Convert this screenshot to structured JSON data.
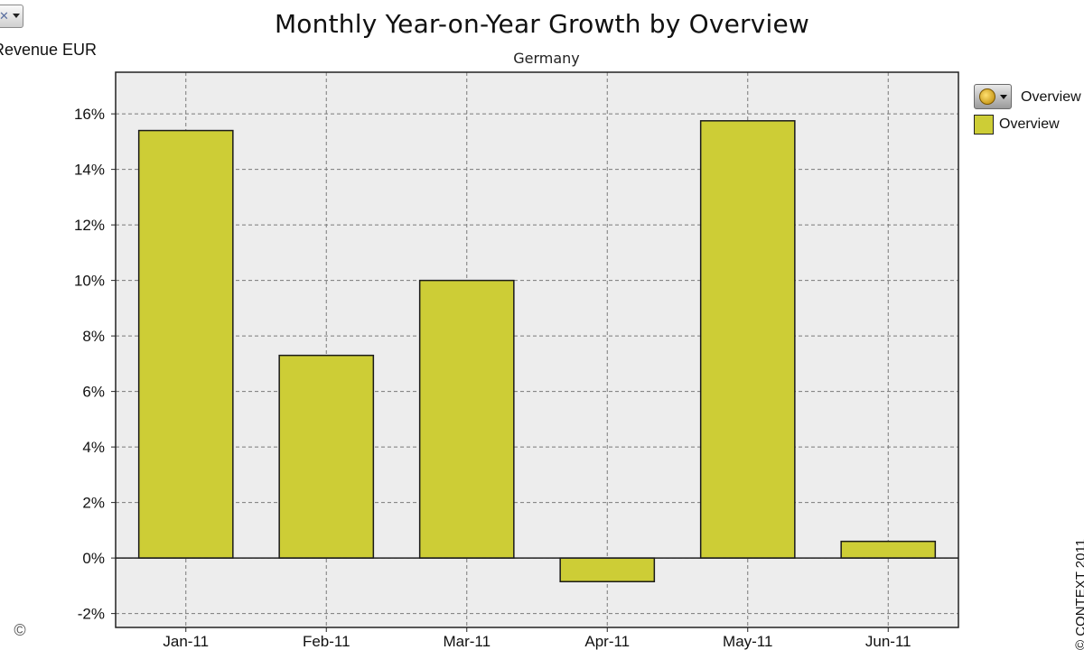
{
  "toolbar": {
    "measure_label": "Revenue EUR",
    "legend_dropdown_label": "Overview",
    "measure_icon": "excel-icon",
    "legend_icon": "coin-icon"
  },
  "footer": {
    "copyright_symbol": "©",
    "credit": "© CONTEXT 2011"
  },
  "chart_data": {
    "type": "bar",
    "title": "Monthly Year-on-Year Growth by Overview",
    "subtitle": "Germany",
    "xlabel": "",
    "ylabel": "",
    "categories": [
      "Jan-11",
      "Feb-11",
      "Mar-11",
      "Apr-11",
      "May-11",
      "Jun-11"
    ],
    "series": [
      {
        "name": "Overview",
        "values": [
          15.4,
          7.3,
          10.0,
          -0.85,
          15.75,
          0.6
        ]
      }
    ],
    "ylim": [
      -2.5,
      17.5
    ],
    "yticks": [
      -2,
      0,
      2,
      4,
      6,
      8,
      10,
      12,
      14,
      16
    ],
    "ytick_labels": [
      "-2%",
      "0%",
      "2%",
      "4%",
      "6%",
      "8%",
      "10%",
      "12%",
      "14%",
      "16%"
    ],
    "grid": true,
    "legend": "right",
    "colors": {
      "bar": "#cdcd36",
      "plot_bg": "#ededed",
      "grid": "#7a7a7a"
    }
  }
}
